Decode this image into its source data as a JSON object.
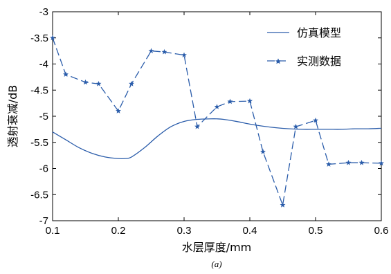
{
  "chart_data": {
    "type": "line",
    "xlabel": "水层厚度/mm",
    "ylabel": "透射衰减/dB",
    "caption": "(a)",
    "xlim": [
      0.1,
      0.6
    ],
    "ylim": [
      -7,
      -3
    ],
    "xticks": [
      0.1,
      0.2,
      0.3,
      0.4,
      0.5,
      0.6
    ],
    "yticks": [
      -3,
      -3.5,
      -4,
      -4.5,
      -5,
      -5.5,
      -6,
      -6.5,
      -7
    ],
    "xtick_labels": [
      "0.1",
      "0.2",
      "0.3",
      "0.4",
      "0.5",
      "0.6"
    ],
    "ytick_labels": [
      "-3",
      "-3.5",
      "-4",
      "-4.5",
      "-5",
      "-5.5",
      "-6",
      "-6.5",
      "-7"
    ],
    "grid": false,
    "legend_position": "top-right",
    "color": "#2a5caa",
    "series": [
      {
        "name": "仿真模型",
        "style": "solid",
        "marker": "none",
        "x": [
          0.1,
          0.12,
          0.14,
          0.16,
          0.18,
          0.2,
          0.21,
          0.22,
          0.24,
          0.26,
          0.28,
          0.3,
          0.32,
          0.34,
          0.35,
          0.36,
          0.38,
          0.4,
          0.42,
          0.44,
          0.46,
          0.48,
          0.5,
          0.52,
          0.54,
          0.56,
          0.58,
          0.6
        ],
        "y": [
          -5.3,
          -5.45,
          -5.6,
          -5.71,
          -5.78,
          -5.81,
          -5.81,
          -5.78,
          -5.6,
          -5.38,
          -5.2,
          -5.1,
          -5.06,
          -5.05,
          -5.05,
          -5.06,
          -5.1,
          -5.15,
          -5.19,
          -5.22,
          -5.24,
          -5.25,
          -5.25,
          -5.25,
          -5.25,
          -5.24,
          -5.24,
          -5.23
        ]
      },
      {
        "name": "实测数据",
        "style": "dashed",
        "marker": "star",
        "x": [
          0.1,
          0.12,
          0.15,
          0.17,
          0.2,
          0.22,
          0.25,
          0.27,
          0.3,
          0.32,
          0.35,
          0.37,
          0.4,
          0.42,
          0.45,
          0.47,
          0.5,
          0.52,
          0.55,
          0.57,
          0.6
        ],
        "y": [
          -3.5,
          -4.2,
          -4.35,
          -4.38,
          -4.9,
          -4.38,
          -3.75,
          -3.77,
          -3.83,
          -5.2,
          -4.82,
          -4.72,
          -4.71,
          -5.68,
          -6.7,
          -5.2,
          -5.08,
          -5.92,
          -5.89,
          -5.89,
          -5.9
        ]
      }
    ]
  }
}
